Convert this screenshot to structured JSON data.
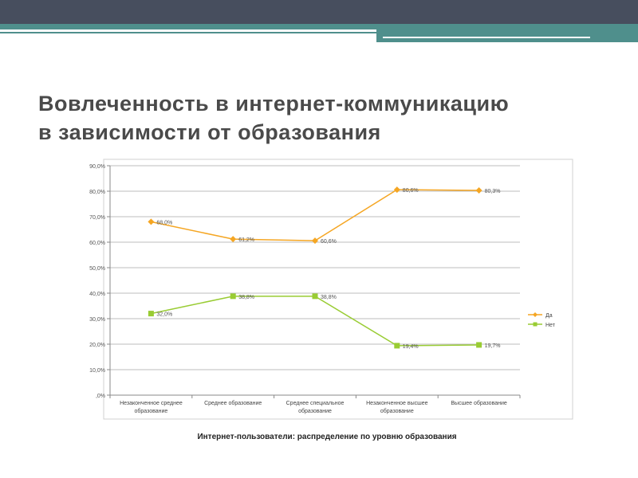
{
  "slide": {
    "title_line1": "Вовлеченность в интернет-коммуникацию",
    "title_line2": "в зависимости от образования"
  },
  "colors": {
    "header_dark": "#474e5e",
    "accent_teal": "#4f8f8c",
    "series_yes": "#f5a623",
    "series_no": "#99cc33",
    "gridline": "#bdbdbd"
  },
  "chart_data": {
    "type": "line",
    "title": "Интернет-пользователи: распределение по уровню образования",
    "xlabel": "",
    "ylabel": "",
    "ylim": [
      0,
      90
    ],
    "y_ticks": [
      ",0%",
      "10,0%",
      "20,0%",
      "30,0%",
      "40,0%",
      "50,0%",
      "60,0%",
      "70,0%",
      "80,0%",
      "90,0%"
    ],
    "categories": [
      [
        "Незаконченное среднее",
        "образование"
      ],
      [
        "Среднее образование"
      ],
      [
        "Среднее специальное",
        "образование"
      ],
      [
        "Незаконченное высшее",
        "образование"
      ],
      [
        "Высшее образование"
      ]
    ],
    "grid": true,
    "legend_position": "right",
    "series": [
      {
        "name": "Да",
        "values": [
          68.0,
          61.2,
          60.6,
          80.6,
          80.3
        ],
        "labels": [
          "68,0%",
          "61,2%",
          "60,6%",
          "80,6%",
          "80,3%"
        ]
      },
      {
        "name": "Нет",
        "values": [
          32.0,
          38.8,
          38.8,
          19.4,
          19.7
        ],
        "labels": [
          "32,0%",
          "38,8%",
          "38,8%",
          "19,4%",
          "19,7%"
        ]
      }
    ]
  }
}
